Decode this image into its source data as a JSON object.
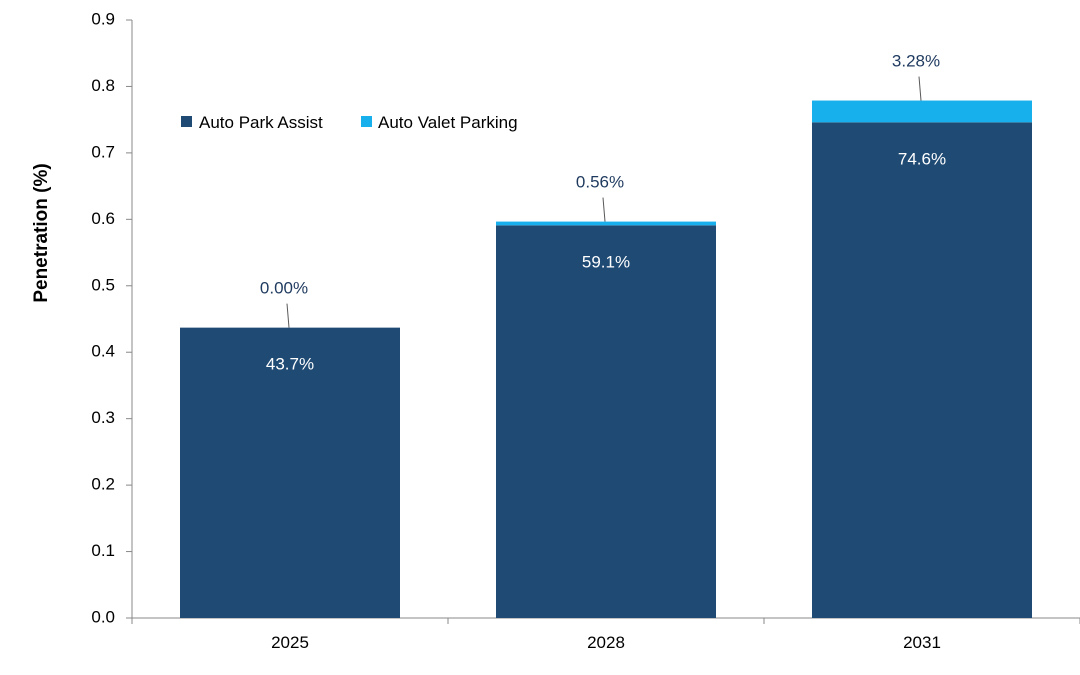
{
  "chart_data": {
    "type": "bar",
    "stacked": true,
    "categories": [
      "2025",
      "2028",
      "2031"
    ],
    "series": [
      {
        "name": "Auto Park Assist",
        "values": [
          0.437,
          0.591,
          0.746
        ],
        "labels": [
          "43.7%",
          "59.1%",
          "74.6%"
        ],
        "color": "#1f4a74"
      },
      {
        "name": "Auto Valet Parking",
        "values": [
          0.0,
          0.0056,
          0.0328
        ],
        "labels": [
          "0.00%",
          "0.56%",
          "3.28%"
        ],
        "color": "#17b0ec"
      }
    ],
    "ylabel": "Penetration (%)",
    "xlabel": "",
    "ylim": [
      0,
      0.9
    ],
    "yticks": [
      "0.0",
      "0.1",
      "0.2",
      "0.3",
      "0.4",
      "0.5",
      "0.6",
      "0.7",
      "0.8",
      "0.9"
    ],
    "grid": false,
    "legend_position": "top-left"
  }
}
